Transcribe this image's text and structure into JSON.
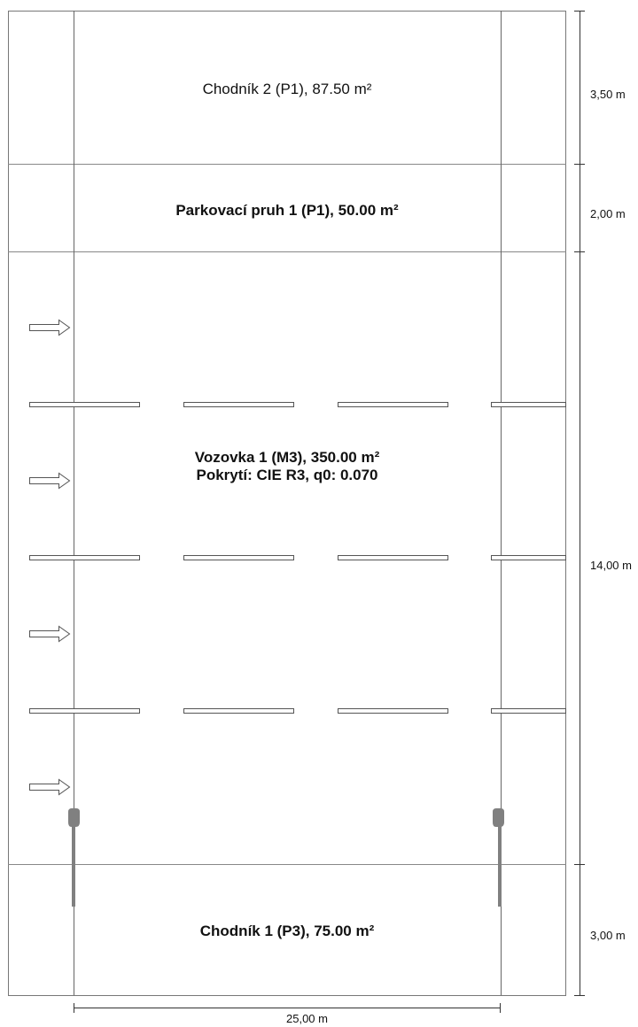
{
  "zones": [
    {
      "id": "chodnik-2",
      "title": "Chodník 2 (P1), 87.50 m²",
      "bold": false,
      "width_m": "3,50 m"
    },
    {
      "id": "parkovaci-pruh-1",
      "title": "Parkovací pruh 1 (P1), 50.00 m²",
      "bold": true,
      "width_m": "2,00 m"
    },
    {
      "id": "vozovka-1",
      "title": "Vozovka 1 (M3), 350.00 m²",
      "subtitle": "Pokrytí: CIE R3, q0: 0.070",
      "bold": true,
      "width_m": "14,00 m"
    },
    {
      "id": "chodnik-1",
      "title": "Chodník 1 (P3), 75.00 m²",
      "bold": true,
      "width_m": "3,00 m"
    }
  ],
  "length_dimension": "25,00 m",
  "road": {
    "lanes": 4,
    "direction": "right"
  },
  "luminaires": {
    "count": 2,
    "icon": "street-light-icon"
  },
  "colors": {
    "line": "#555555",
    "pole": "#808080",
    "text": "#111111"
  }
}
